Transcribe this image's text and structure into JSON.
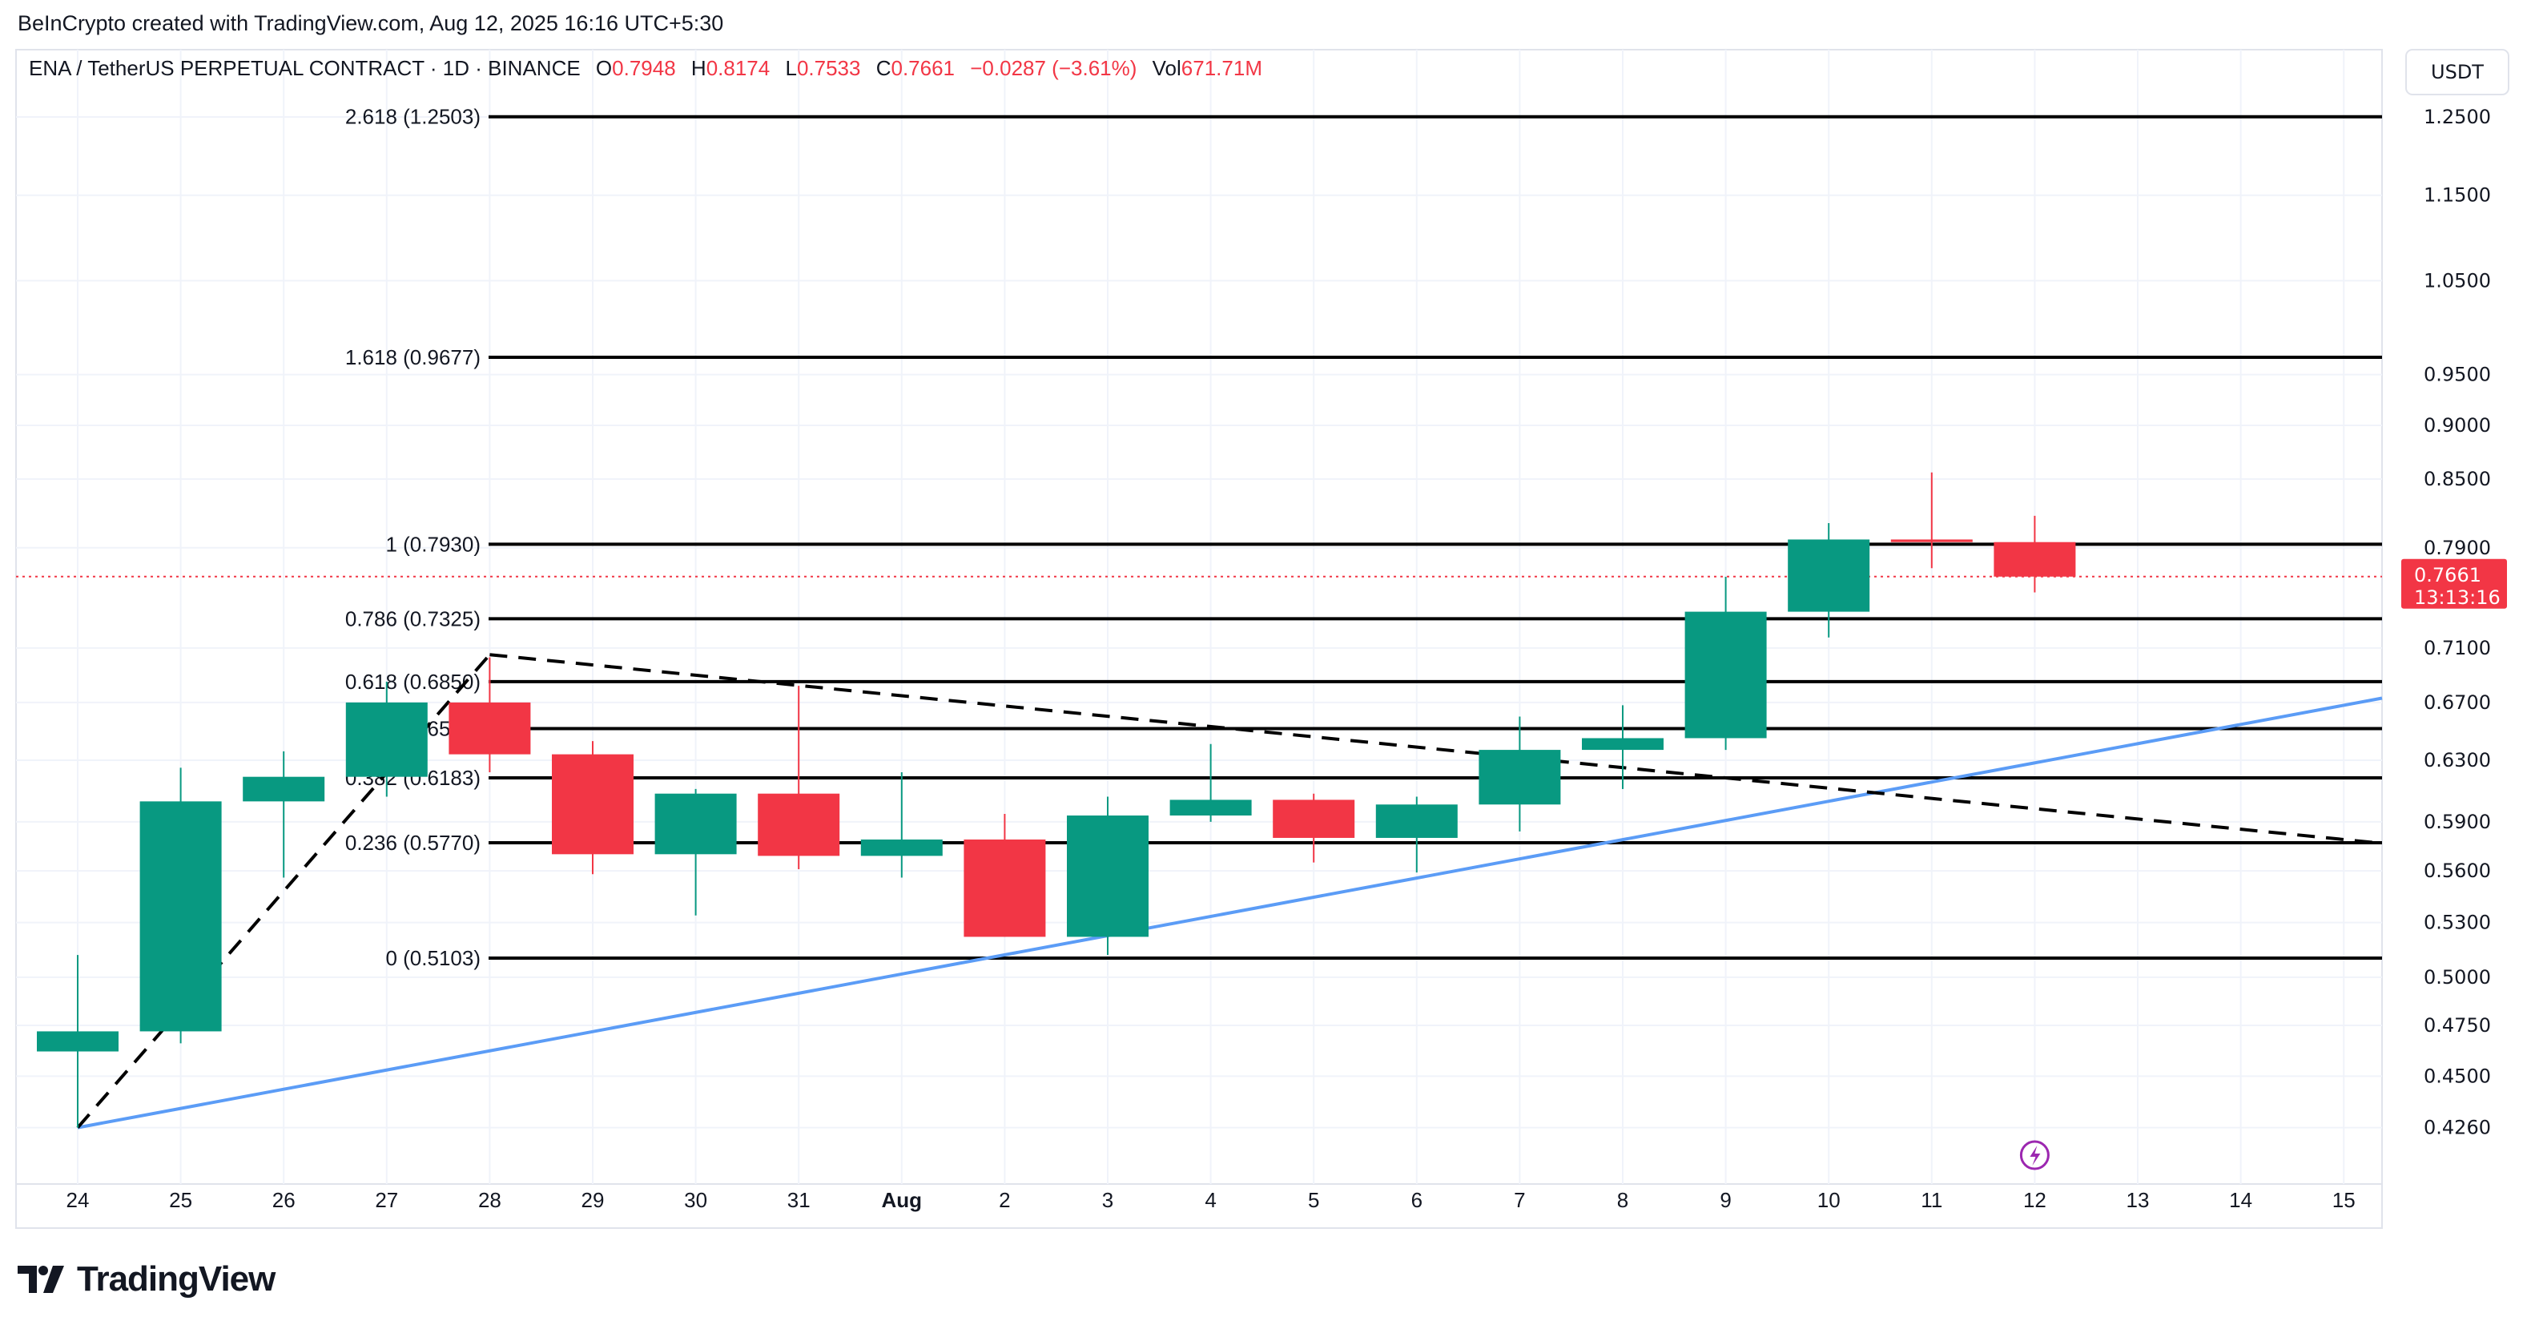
{
  "header": {
    "credit": "BeInCrypto created with TradingView.com, Aug 12, 2025 16:16 UTC+5:30",
    "symbol": "ENA / TetherUS PERPETUAL CONTRACT · 1D · BINANCE",
    "open_label": "O",
    "open": "0.7948",
    "high_label": "H",
    "high": "0.8174",
    "low_label": "L",
    "low": "0.7533",
    "close_label": "C",
    "close": "0.7661",
    "change": "−0.0287 (−3.61%)",
    "vol_label": "Vol",
    "vol": "671.71M"
  },
  "axis": {
    "currency": "USDT",
    "last_price": "0.7661",
    "countdown": "13:13:16"
  },
  "footer": {
    "brand": "TradingView"
  },
  "colors": {
    "up": "#089981",
    "down": "#f23645",
    "trendline": "#5b9cf6",
    "fib": "#000000",
    "grid": "#f0f3fa"
  },
  "chart_data": {
    "type": "candlestick",
    "y_scale": "log",
    "ylim": [
      0.41,
      1.28
    ],
    "grid": true,
    "y_ticks": [
      "1.2500",
      "1.1500",
      "1.0500",
      "0.9500",
      "0.9000",
      "0.8500",
      "0.7900",
      "0.7100",
      "0.6700",
      "0.6300",
      "0.5900",
      "0.5600",
      "0.5300",
      "0.5000",
      "0.4750",
      "0.4500",
      "0.4260"
    ],
    "x_ticks": [
      "24",
      "25",
      "26",
      "27",
      "28",
      "29",
      "30",
      "31",
      "Aug",
      "2",
      "3",
      "4",
      "5",
      "6",
      "7",
      "8",
      "9",
      "10",
      "11",
      "12",
      "13",
      "14",
      "15"
    ],
    "x_dates": [
      "2025-07-24",
      "2025-07-25",
      "2025-07-26",
      "2025-07-27",
      "2025-07-28",
      "2025-07-29",
      "2025-07-30",
      "2025-07-31",
      "2025-08-01",
      "2025-08-02",
      "2025-08-03",
      "2025-08-04",
      "2025-08-05",
      "2025-08-06",
      "2025-08-07",
      "2025-08-08",
      "2025-08-09",
      "2025-08-10",
      "2025-08-11",
      "2025-08-12",
      "2025-08-13",
      "2025-08-14",
      "2025-08-15"
    ],
    "candles": [
      {
        "date": "2025-07-24",
        "o": 0.462,
        "h": 0.512,
        "l": 0.426,
        "c": 0.472
      },
      {
        "date": "2025-07-25",
        "o": 0.472,
        "h": 0.625,
        "l": 0.466,
        "c": 0.603
      },
      {
        "date": "2025-07-26",
        "o": 0.603,
        "h": 0.636,
        "l": 0.556,
        "c": 0.619
      },
      {
        "date": "2025-07-27",
        "o": 0.619,
        "h": 0.685,
        "l": 0.606,
        "c": 0.67
      },
      {
        "date": "2025-07-28",
        "o": 0.67,
        "h": 0.703,
        "l": 0.622,
        "c": 0.634
      },
      {
        "date": "2025-07-29",
        "o": 0.634,
        "h": 0.643,
        "l": 0.558,
        "c": 0.57
      },
      {
        "date": "2025-07-30",
        "o": 0.57,
        "h": 0.611,
        "l": 0.534,
        "c": 0.608
      },
      {
        "date": "2025-07-31",
        "o": 0.608,
        "h": 0.682,
        "l": 0.561,
        "c": 0.569
      },
      {
        "date": "2025-08-01",
        "o": 0.569,
        "h": 0.622,
        "l": 0.556,
        "c": 0.579
      },
      {
        "date": "2025-08-02",
        "o": 0.579,
        "h": 0.595,
        "l": 0.522,
        "c": 0.522
      },
      {
        "date": "2025-08-03",
        "o": 0.522,
        "h": 0.606,
        "l": 0.512,
        "c": 0.594
      },
      {
        "date": "2025-08-04",
        "o": 0.594,
        "h": 0.641,
        "l": 0.59,
        "c": 0.604
      },
      {
        "date": "2025-08-05",
        "o": 0.604,
        "h": 0.608,
        "l": 0.565,
        "c": 0.58
      },
      {
        "date": "2025-08-06",
        "o": 0.58,
        "h": 0.606,
        "l": 0.559,
        "c": 0.601
      },
      {
        "date": "2025-08-07",
        "o": 0.601,
        "h": 0.66,
        "l": 0.584,
        "c": 0.637
      },
      {
        "date": "2025-08-08",
        "o": 0.637,
        "h": 0.668,
        "l": 0.611,
        "c": 0.645
      },
      {
        "date": "2025-08-09",
        "o": 0.645,
        "h": 0.766,
        "l": 0.637,
        "c": 0.738
      },
      {
        "date": "2025-08-10",
        "o": 0.738,
        "h": 0.811,
        "l": 0.718,
        "c": 0.797
      },
      {
        "date": "2025-08-11",
        "o": 0.797,
        "h": 0.856,
        "l": 0.773,
        "c": 0.7948
      },
      {
        "date": "2025-08-12",
        "o": 0.7948,
        "h": 0.8174,
        "l": 0.7533,
        "c": 0.7661
      }
    ],
    "fib_levels": [
      {
        "label": "2.618 (1.2503)",
        "price": 1.2503
      },
      {
        "label": "1.618 (0.9677)",
        "price": 0.9677
      },
      {
        "label": "1 (0.7930)",
        "price": 0.793
      },
      {
        "label": "0.786 (0.7325)",
        "price": 0.7325
      },
      {
        "label": "0.618 (0.6850)",
        "price": 0.685
      },
      {
        "label": "0.5 (0.6516)",
        "price": 0.6516
      },
      {
        "label": "0.382 (0.6183)",
        "price": 0.6183
      },
      {
        "label": "0.236 (0.5770)",
        "price": 0.577
      },
      {
        "label": "0 (0.5103)",
        "price": 0.5103
      }
    ],
    "trendlines": [
      {
        "style": "solid",
        "color": "#5b9cf6",
        "from": {
          "date": "2025-07-24",
          "price": 0.426
        },
        "to": {
          "date": "2025-08-15",
          "price": 0.668
        },
        "extend_right": true
      },
      {
        "style": "dashed",
        "color": "#000000",
        "from": {
          "date": "2025-07-24",
          "price": 0.426
        },
        "to": {
          "date": "2025-07-28",
          "price": 0.705
        },
        "extend_right": false
      },
      {
        "style": "dashed",
        "color": "#000000",
        "from": {
          "date": "2025-07-28",
          "price": 0.705
        },
        "to": {
          "date": "2025-08-15",
          "price": 0.579
        },
        "extend_right": true
      }
    ],
    "last_price": 0.7661
  }
}
